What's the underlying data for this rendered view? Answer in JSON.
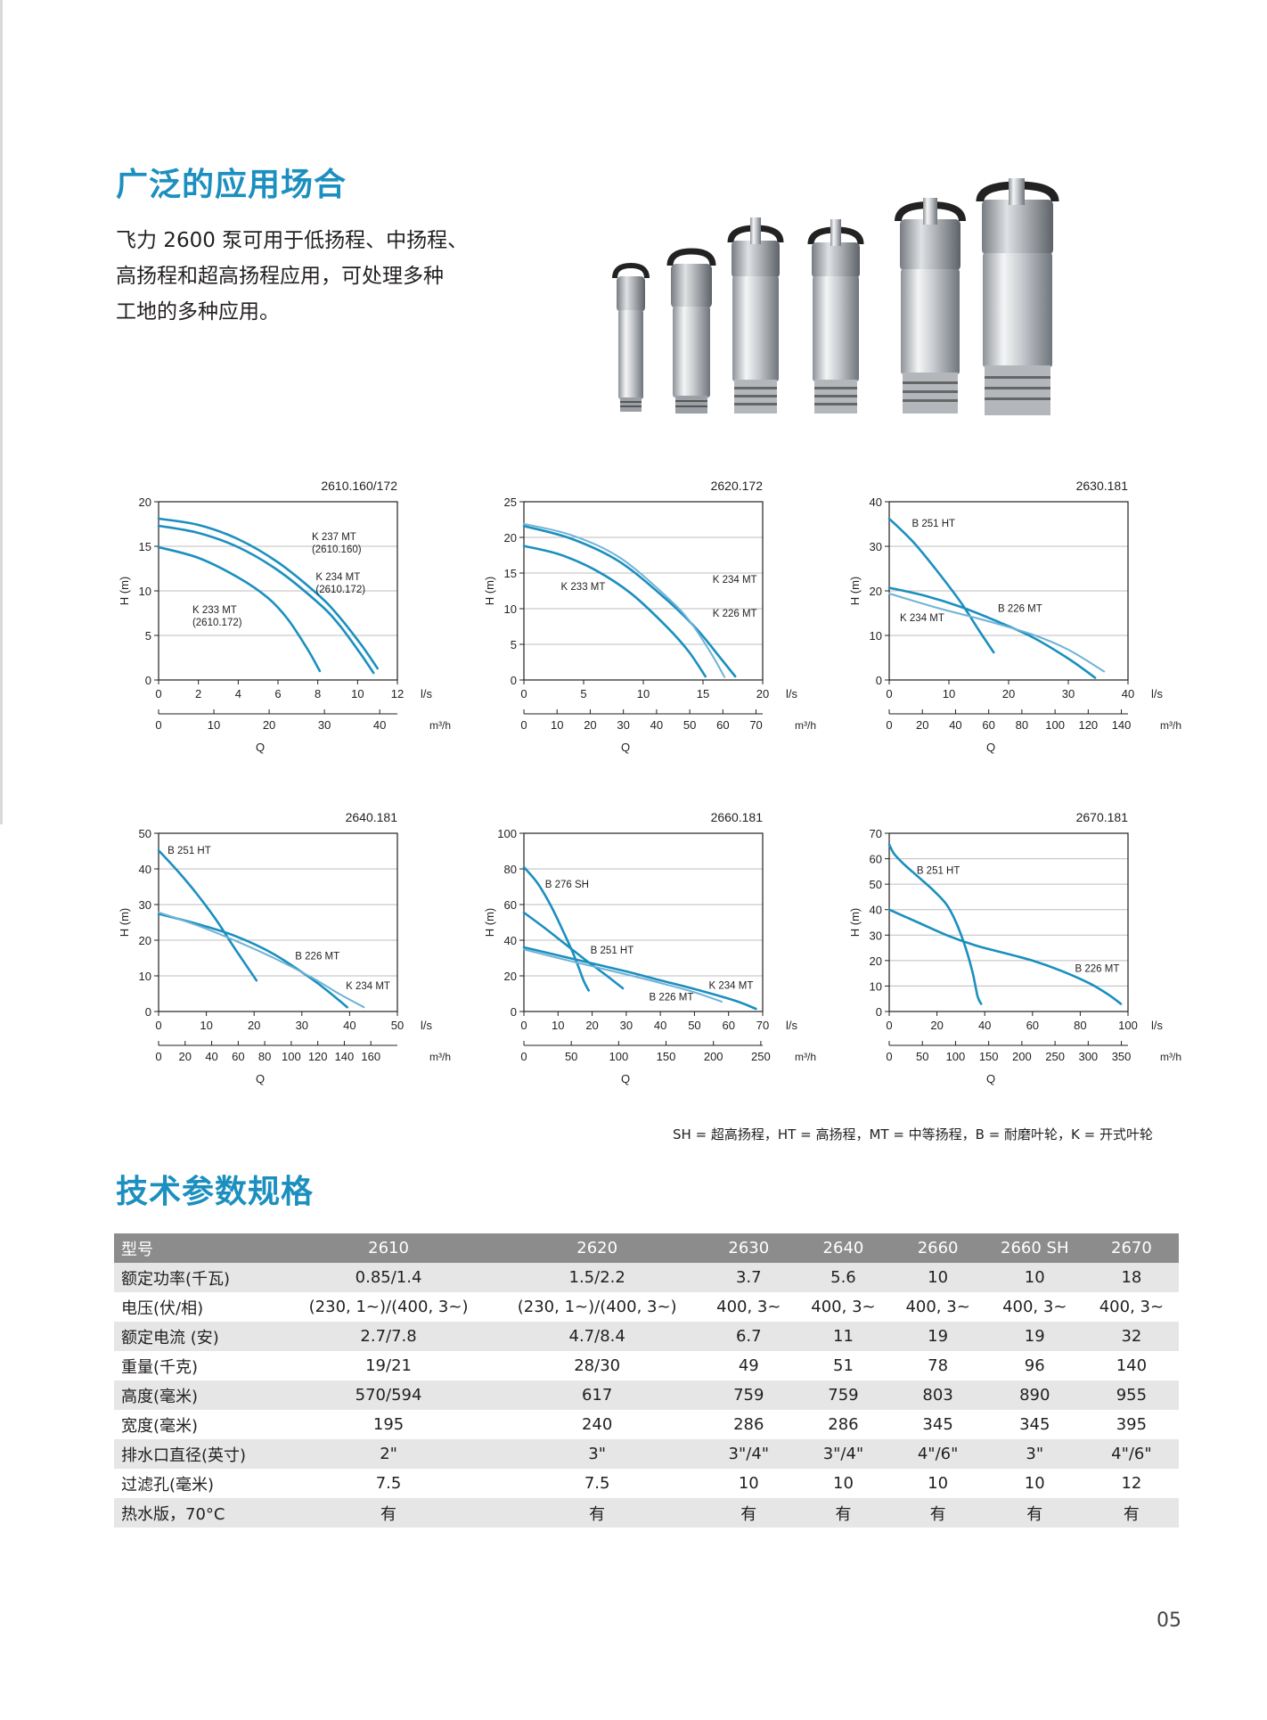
{
  "section1": {
    "title": "广泛的应用场合",
    "intro_lines": [
      "飞力 2600 泵可用于低扬程、中扬程、",
      "高扬程和超高扬程应用，可处理多种",
      "工地的多种应用。"
    ]
  },
  "pump_photo": {
    "icon": "pump-lineup-image",
    "count": 6
  },
  "curve_color": "#1b8fbf",
  "curve_color_light": "#6fb3d6",
  "charts": [
    {
      "model": "2610.160/172",
      "ylabel": "H (m)",
      "xlabel": "Q",
      "x_unit": "l/s",
      "x2_unit": "m³/h",
      "ylim": [
        0,
        20
      ],
      "yticks": [
        0,
        5,
        10,
        15,
        20
      ],
      "xlim": [
        0,
        12
      ],
      "xticks": [
        0,
        2,
        4,
        6,
        8,
        10,
        12
      ],
      "x2lim": [
        0,
        43.2
      ],
      "x2ticks": [
        0,
        10,
        20,
        30,
        40
      ],
      "series": [
        {
          "label": [
            "K 237 MT",
            "(2610.160)"
          ],
          "light": false,
          "points": [
            [
              0,
              18.1
            ],
            [
              2,
              17.4
            ],
            [
              4,
              15.8
            ],
            [
              6,
              13.2
            ],
            [
              8,
              9.6
            ],
            [
              9,
              7.3
            ],
            [
              10.2,
              3.9
            ],
            [
              11,
              1.3
            ]
          ]
        },
        {
          "label": [
            "K 234 MT",
            "(2610.172)"
          ],
          "light": false,
          "points": [
            [
              0,
              17.3
            ],
            [
              2,
              16.5
            ],
            [
              4,
              14.9
            ],
            [
              6,
              12.3
            ],
            [
              8,
              8.7
            ],
            [
              9,
              6.4
            ],
            [
              10.1,
              3.1
            ],
            [
              10.8,
              0.8
            ]
          ]
        },
        {
          "label": [
            "K 233 MT",
            "(2610.172)"
          ],
          "light": false,
          "points": [
            [
              0,
              14.9
            ],
            [
              2,
              13.7
            ],
            [
              4,
              11.5
            ],
            [
              5.5,
              9.2
            ],
            [
              6.5,
              6.8
            ],
            [
              7.5,
              3.4
            ],
            [
              8.1,
              1
            ]
          ]
        }
      ],
      "labels": [
        {
          "series": 0,
          "x": 7.7,
          "y": 15.7
        },
        {
          "series": 1,
          "x": 7.9,
          "y": 11.2
        },
        {
          "series": 2,
          "x": 1.7,
          "y": 7.5
        }
      ]
    },
    {
      "model": "2620.172",
      "ylabel": "H (m)",
      "xlabel": "Q",
      "x_unit": "l/s",
      "x2_unit": "m³/h",
      "ylim": [
        0,
        25
      ],
      "yticks": [
        0,
        5,
        10,
        15,
        20,
        25
      ],
      "xlim": [
        0,
        20
      ],
      "xticks": [
        0,
        5,
        10,
        15,
        20
      ],
      "x2lim": [
        0,
        72
      ],
      "x2ticks": [
        0,
        10,
        20,
        30,
        40,
        50,
        60,
        70
      ],
      "series": [
        {
          "label": [
            "K 234 MT"
          ],
          "light": false,
          "points": [
            [
              0,
              21.6
            ],
            [
              4,
              19.8
            ],
            [
              8,
              16.6
            ],
            [
              12,
              11.2
            ],
            [
              14.5,
              7.1
            ],
            [
              16.5,
              3
            ],
            [
              17.7,
              0.5
            ]
          ]
        },
        {
          "label": [
            "K 226 MT"
          ],
          "light": true,
          "points": [
            [
              0,
              21.9
            ],
            [
              4,
              20.3
            ],
            [
              8,
              17.2
            ],
            [
              12,
              11.6
            ],
            [
              14,
              8
            ],
            [
              15.8,
              3.4
            ],
            [
              16.8,
              0.4
            ]
          ]
        },
        {
          "label": [
            "K 233 MT"
          ],
          "light": false,
          "points": [
            [
              0,
              18.8
            ],
            [
              3,
              17.6
            ],
            [
              6,
              15.4
            ],
            [
              9,
              12.1
            ],
            [
              12,
              7.4
            ],
            [
              13.8,
              4
            ],
            [
              15.2,
              0.5
            ]
          ]
        }
      ],
      "labels": [
        {
          "series": 0,
          "x": 15.8,
          "y": 13.6
        },
        {
          "series": 1,
          "x": 15.8,
          "y": 8.9
        },
        {
          "series": 2,
          "x": 3.1,
          "y": 12.6
        }
      ]
    },
    {
      "model": "2630.181",
      "ylabel": "H (m)",
      "xlabel": "Q",
      "x_unit": "l/s",
      "x2_unit": "m³/h",
      "ylim": [
        0,
        40
      ],
      "yticks": [
        0,
        10,
        20,
        30,
        40
      ],
      "xlim": [
        0,
        40
      ],
      "xticks": [
        0,
        10,
        20,
        30,
        40
      ],
      "x2lim": [
        0,
        144
      ],
      "x2ticks": [
        0,
        20,
        40,
        60,
        80,
        100,
        120,
        140
      ],
      "series": [
        {
          "label": [
            "B 251 HT"
          ],
          "light": false,
          "points": [
            [
              0,
              36.2
            ],
            [
              4,
              31
            ],
            [
              8,
              24.5
            ],
            [
              12,
              17.4
            ],
            [
              15,
              11.2
            ],
            [
              17.5,
              6.2
            ]
          ]
        },
        {
          "label": [
            "B 226 MT"
          ],
          "light": false,
          "points": [
            [
              0,
              20.7
            ],
            [
              6,
              18.9
            ],
            [
              12,
              16.4
            ],
            [
              18,
              13.2
            ],
            [
              24,
              9.6
            ],
            [
              30,
              4.8
            ],
            [
              34.5,
              0.5
            ]
          ]
        },
        {
          "label": [
            "K 234 MT"
          ],
          "light": true,
          "points": [
            [
              0,
              19.4
            ],
            [
              8,
              16.2
            ],
            [
              16,
              13.4
            ],
            [
              24,
              10.2
            ],
            [
              30,
              6.8
            ],
            [
              36,
              1.9
            ]
          ]
        }
      ],
      "labels": [
        {
          "series": 0,
          "x": 3.8,
          "y": 34.4
        },
        {
          "series": 1,
          "x": 18.2,
          "y": 15.3
        },
        {
          "series": 2,
          "x": 1.8,
          "y": 13.2
        }
      ]
    },
    {
      "model": "2640.181",
      "ylabel": "H (m)",
      "xlabel": "Q",
      "x_unit": "l/s",
      "x2_unit": "m³/h",
      "ylim": [
        0,
        50
      ],
      "yticks": [
        0,
        10,
        20,
        30,
        40,
        50
      ],
      "xlim": [
        0,
        50
      ],
      "xticks": [
        0,
        10,
        20,
        30,
        40,
        50
      ],
      "x2lim": [
        0,
        180
      ],
      "x2ticks": [
        0,
        20,
        40,
        60,
        80,
        100,
        120,
        140,
        160
      ],
      "series": [
        {
          "label": [
            "B 251 HT"
          ],
          "light": false,
          "points": [
            [
              0,
              45.2
            ],
            [
              4,
              39.4
            ],
            [
              8,
              33
            ],
            [
              12,
              25.8
            ],
            [
              16,
              17.6
            ],
            [
              20.5,
              8.7
            ]
          ]
        },
        {
          "label": [
            "B 226 MT"
          ],
          "light": false,
          "points": [
            [
              0,
              27.4
            ],
            [
              8,
              24.6
            ],
            [
              16,
              21.2
            ],
            [
              24,
              16.2
            ],
            [
              32,
              9.2
            ],
            [
              36,
              5.1
            ],
            [
              39.5,
              1.2
            ]
          ]
        },
        {
          "label": [
            "K 234 MT"
          ],
          "light": true,
          "points": [
            [
              0,
              27.8
            ],
            [
              8,
              24.2
            ],
            [
              16,
              19.9
            ],
            [
              24,
              15.1
            ],
            [
              32,
              9.6
            ],
            [
              38,
              4.8
            ],
            [
              43,
              1.2
            ]
          ]
        }
      ],
      "labels": [
        {
          "series": 0,
          "x": 1.9,
          "y": 44.3
        },
        {
          "series": 1,
          "x": 28.6,
          "y": 14.6
        },
        {
          "series": 2,
          "x": 39.2,
          "y": 6.2
        }
      ]
    },
    {
      "model": "2660.181",
      "ylabel": "H (m)",
      "xlabel": "Q",
      "x_unit": "l/s",
      "x2_unit": "m³/h",
      "ylim": [
        0,
        100
      ],
      "yticks": [
        0,
        20,
        40,
        60,
        80,
        100
      ],
      "xlim": [
        0,
        70
      ],
      "xticks": [
        0,
        10,
        20,
        30,
        40,
        50,
        60,
        70
      ],
      "x2lim": [
        0,
        252
      ],
      "x2ticks": [
        0,
        50,
        100,
        150,
        200,
        250
      ],
      "x2_ticklabels": [
        "0",
        "50",
        "100",
        "150",
        "200",
        "250"
      ],
      "series": [
        {
          "label": [
            "B 276 SH"
          ],
          "light": false,
          "points": [
            [
              0,
              81
            ],
            [
              4,
              72
            ],
            [
              8,
              59
            ],
            [
              12,
              43
            ],
            [
              15,
              30
            ],
            [
              17.5,
              17.3
            ],
            [
              19,
              11.8
            ]
          ]
        },
        {
          "label": [
            "B 251 HT"
          ],
          "light": false,
          "points": [
            [
              0,
              55.5
            ],
            [
              6,
              47
            ],
            [
              12,
              38
            ],
            [
              18,
              29
            ],
            [
              24,
              20.5
            ],
            [
              29,
              13
            ]
          ]
        },
        {
          "label": [
            "B 226 MT"
          ],
          "light": false,
          "points": [
            [
              0,
              36
            ],
            [
              10,
              31.5
            ],
            [
              20,
              27
            ],
            [
              30,
              22.5
            ],
            [
              40,
              17.5
            ],
            [
              50,
              12.6
            ],
            [
              62,
              6
            ],
            [
              68,
              1.5
            ]
          ]
        },
        {
          "label": [
            "K 234 MT"
          ],
          "light": true,
          "points": [
            [
              0,
              34.8
            ],
            [
              10,
              30
            ],
            [
              20,
              25.4
            ],
            [
              30,
              20.8
            ],
            [
              40,
              16
            ],
            [
              50,
              10.8
            ],
            [
              58,
              5.5
            ]
          ]
        }
      ],
      "labels": [
        {
          "series": 0,
          "x": 6.2,
          "y": 69.5
        },
        {
          "series": 1,
          "x": 19.5,
          "y": 32.6
        },
        {
          "series": 2,
          "x": 36.7,
          "y": 6.2
        },
        {
          "series": 3,
          "x": 54.2,
          "y": 12.8
        }
      ]
    },
    {
      "model": "2670.181",
      "ylabel": "H (m)",
      "xlabel": "Q",
      "x_unit": "l/s",
      "x2_unit": "m³/h",
      "ylim": [
        0,
        70
      ],
      "yticks": [
        0,
        10,
        20,
        30,
        40,
        50,
        60,
        70
      ],
      "xlim": [
        0,
        100
      ],
      "xticks": [
        0,
        20,
        40,
        60,
        80,
        100
      ],
      "x2lim": [
        0,
        360
      ],
      "x2ticks": [
        0,
        50,
        100,
        150,
        200,
        250,
        300,
        350
      ],
      "series": [
        {
          "label": [
            "B 251 HT"
          ],
          "light": false,
          "points": [
            [
              0,
              65.6
            ],
            [
              2,
              62
            ],
            [
              6,
              58
            ],
            [
              12,
              53
            ],
            [
              18,
              48
            ],
            [
              24,
              42
            ],
            [
              28,
              35
            ],
            [
              32,
              25
            ],
            [
              35,
              15
            ],
            [
              37,
              6
            ],
            [
              38.5,
              3
            ]
          ]
        },
        {
          "label": [
            "B 226 MT"
          ],
          "light": false,
          "points": [
            [
              0,
              40
            ],
            [
              12,
              35
            ],
            [
              24,
              30
            ],
            [
              36,
              26
            ],
            [
              48,
              23
            ],
            [
              60,
              20
            ],
            [
              72,
              16
            ],
            [
              84,
              11
            ],
            [
              92,
              6.5
            ],
            [
              97,
              3
            ]
          ]
        }
      ],
      "labels": [
        {
          "series": 0,
          "x": 11.5,
          "y": 54
        },
        {
          "series": 1,
          "x": 77.8,
          "y": 15.5
        }
      ]
    }
  ],
  "legend_text": "SH = 超高扬程，HT = 高扬程，MT = 中等扬程，B = 耐磨叶轮，K = 开式叶轮",
  "section2": {
    "title": "技术参数规格"
  },
  "spec_table": {
    "header": [
      "型号",
      "2610",
      "2620",
      "2630",
      "2640",
      "2660",
      "2660 SH",
      "2670"
    ],
    "rows": [
      [
        "额定功率(千瓦)",
        "0.85/1.4",
        "1.5/2.2",
        "3.7",
        "5.6",
        "10",
        "10",
        "18"
      ],
      [
        "电压(伏/相)",
        "(230, 1~)/(400, 3~)",
        "(230, 1~)/(400, 3~)",
        "400, 3~",
        "400, 3~",
        "400, 3~",
        "400, 3~",
        "400, 3~"
      ],
      [
        "额定电流 (安)",
        "2.7/7.8",
        "4.7/8.4",
        "6.7",
        "11",
        "19",
        "19",
        "32"
      ],
      [
        "重量(千克)",
        "19/21",
        "28/30",
        "49",
        "51",
        "78",
        "96",
        "140"
      ],
      [
        "高度(毫米)",
        "570/594",
        "617",
        "759",
        "759",
        "803",
        "890",
        "955"
      ],
      [
        "宽度(毫米)",
        "195",
        "240",
        "286",
        "286",
        "345",
        "345",
        "395"
      ],
      [
        "排水口直径(英寸)",
        "2\"",
        "3\"",
        "3\"/4\"",
        "3\"/4\"",
        "4\"/6\"",
        "3\"",
        "4\"/6\""
      ],
      [
        "过滤孔(毫米)",
        "7.5",
        "7.5",
        "10",
        "10",
        "10",
        "10",
        "12"
      ],
      [
        "热水版，70°C",
        "有",
        "有",
        "有",
        "有",
        "有",
        "有",
        "有"
      ]
    ]
  },
  "page_number": "05"
}
